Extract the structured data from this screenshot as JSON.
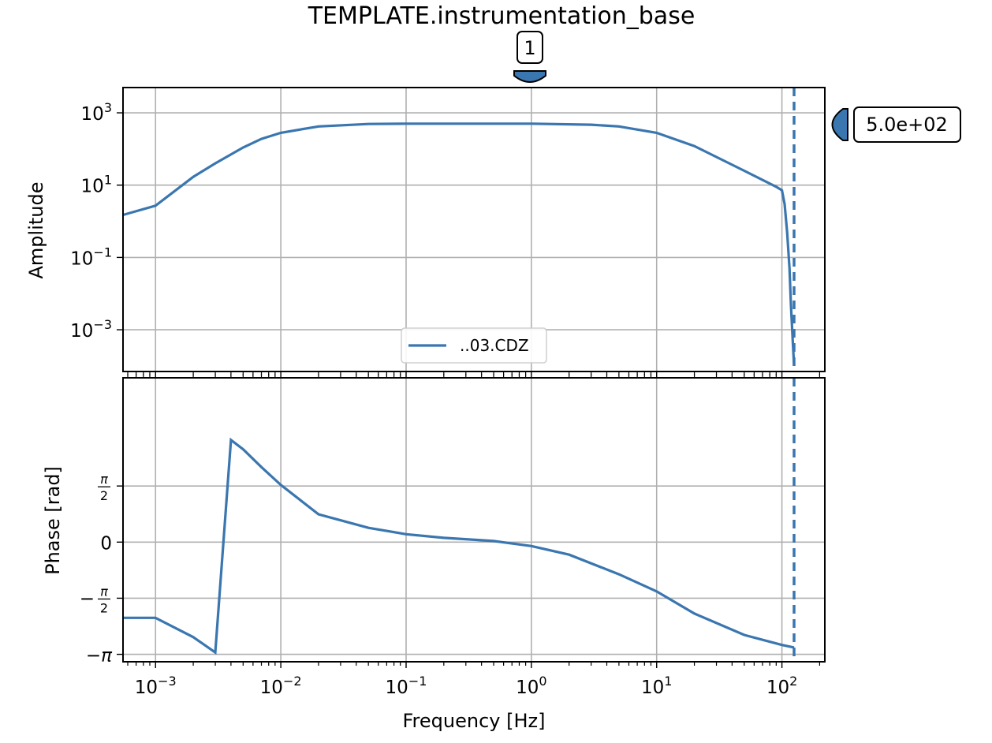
{
  "chart_data": {
    "type": "line",
    "title": "TEMPLATE.instrumentation_base",
    "xlabel": "Frequency [Hz]",
    "x_scale": "log",
    "xlim": [
      0.00055,
      220
    ],
    "x_tick_values": [
      0.001,
      0.01,
      0.1,
      1,
      10,
      100
    ],
    "x_tick_labels": [
      {
        "base": "10",
        "exp": "−3"
      },
      {
        "base": "10",
        "exp": "−2"
      },
      {
        "base": "10",
        "exp": "−1"
      },
      {
        "base": "10",
        "exp": "0"
      },
      {
        "base": "10",
        "exp": "1"
      },
      {
        "base": "10",
        "exp": "2"
      }
    ],
    "grid": true,
    "legend": {
      "location": "lower-center",
      "entries": [
        "..03.CDZ"
      ]
    },
    "amplitude_panel": {
      "ylabel": "Amplitude",
      "y_scale": "log",
      "ylim": [
        7e-05,
        5000
      ],
      "y_tick_values": [
        1000,
        10,
        0.1,
        0.001
      ],
      "y_tick_labels": [
        {
          "base": "10",
          "exp": "3"
        },
        {
          "base": "10",
          "exp": "1"
        },
        {
          "base": "10",
          "exp": "−1"
        },
        {
          "base": "10",
          "exp": "−3"
        }
      ],
      "series": [
        {
          "name": "..03.CDZ",
          "color": "#3a76af",
          "x": [
            0.00055,
            0.001,
            0.002,
            0.003,
            0.005,
            0.007,
            0.01,
            0.02,
            0.05,
            0.1,
            0.5,
            1,
            3,
            5,
            10,
            20,
            50,
            90,
            100,
            105,
            110,
            115,
            118,
            122,
            125
          ],
          "y": [
            1.5,
            2.7,
            17,
            40,
            110,
            190,
            280,
            420,
            490,
            500,
            500,
            500,
            470,
            420,
            280,
            120,
            25,
            9,
            7.2,
            3,
            0.5,
            0.05,
            0.005,
            0.0005,
            0.0001
          ]
        }
      ]
    },
    "phase_panel": {
      "ylabel": "Phase [rad]",
      "ylim": [
        -3.35,
        4.6
      ],
      "y_tick_values": [
        1.5708,
        0,
        -1.5708,
        -3.1416
      ],
      "y_tick_labels": [
        "π/2",
        "0",
        "−π/2",
        "−π"
      ],
      "series": [
        {
          "name": "..03.CDZ",
          "color": "#3a76af",
          "x": [
            0.00055,
            0.001,
            0.002,
            0.003,
            0.004,
            0.005,
            0.007,
            0.01,
            0.02,
            0.05,
            0.1,
            0.2,
            0.5,
            1,
            2,
            5,
            10,
            20,
            50,
            100,
            125
          ],
          "y": [
            -2.12,
            -2.12,
            -2.66,
            -3.09,
            2.86,
            2.6,
            2.1,
            1.6,
            0.78,
            0.4,
            0.22,
            0.12,
            0.03,
            -0.11,
            -0.35,
            -0.9,
            -1.38,
            -2.0,
            -2.6,
            -2.88,
            -2.95
          ]
        }
      ]
    },
    "annotations": {
      "reference_marker_label": "1",
      "reference_marker_x": 1,
      "cutoff_frequency_x": 125,
      "gain_marker_label": "5.0e+02",
      "gain_marker_value": 500
    }
  }
}
